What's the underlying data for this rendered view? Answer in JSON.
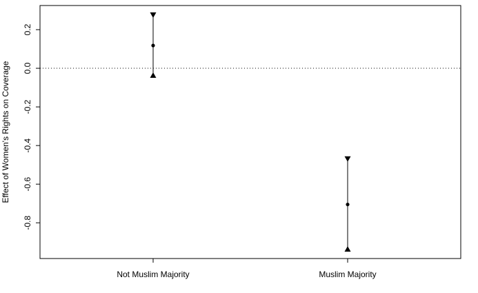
{
  "chart_data": {
    "type": "scatter",
    "title": "",
    "xlabel": "",
    "ylabel": "Effect of Women's Rights on Coverage",
    "categories": [
      "Not Muslim Majority",
      "Muslim Majority"
    ],
    "series": [
      {
        "estimates": [
          0.118,
          -0.705
        ],
        "upper": [
          0.275,
          -0.47
        ],
        "lower": [
          -0.035,
          -0.935
        ]
      }
    ],
    "yticks": [
      0.2,
      0.0,
      -0.2,
      -0.4,
      -0.6,
      -0.8
    ],
    "ytick_labels": [
      "0.2",
      "0.0",
      "-0.2",
      "-0.4",
      "-0.6",
      "-0.8"
    ],
    "ylim": [
      -0.985,
      0.325
    ],
    "reference_line": {
      "y": 0,
      "style": "dotted"
    },
    "grid": false,
    "legend": "none",
    "colors": {
      "marks": "#000000",
      "frame": "#000000",
      "background": "#ffffff"
    }
  }
}
